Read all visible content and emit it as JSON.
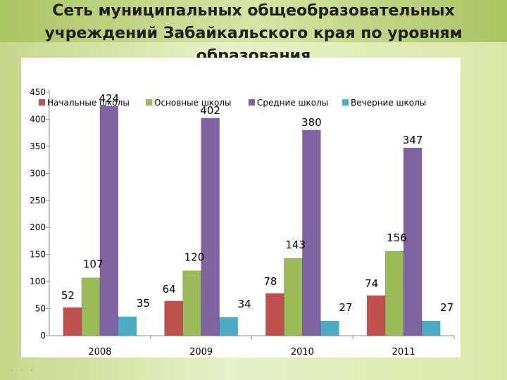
{
  "title_lines": [
    "Сеть муниципальных общеобразовательных",
    "учреждений Забайкальского края по уровням",
    "образования"
  ],
  "colors": {
    "Начальные школы": "#c0504d",
    "Основные школы": "#9bbb59",
    "Средние школы": "#8064a2",
    "Вечерние школы": "#4bacc6"
  },
  "chart_data": {
    "type": "bar",
    "title": "Сеть муниципальных общеобразовательных учреждений Забайкальского края по уровням образования",
    "categories": [
      "2008",
      "2009",
      "2010",
      "2011"
    ],
    "series": [
      {
        "name": "Начальные школы",
        "values": [
          52,
          64,
          78,
          74
        ]
      },
      {
        "name": "Основные школы",
        "values": [
          107,
          120,
          143,
          156
        ]
      },
      {
        "name": "Средние школы",
        "values": [
          424,
          402,
          380,
          347
        ]
      },
      {
        "name": "Вечерние школы",
        "values": [
          35,
          34,
          27,
          27
        ]
      }
    ],
    "yticks": [
      "0",
      "50",
      "100",
      "150",
      "200",
      "250",
      "300",
      "350",
      "400",
      "450"
    ],
    "ylim": [
      0,
      450
    ],
    "xlabel": "",
    "ylabel": "",
    "legend_position": "top",
    "grid": false
  }
}
